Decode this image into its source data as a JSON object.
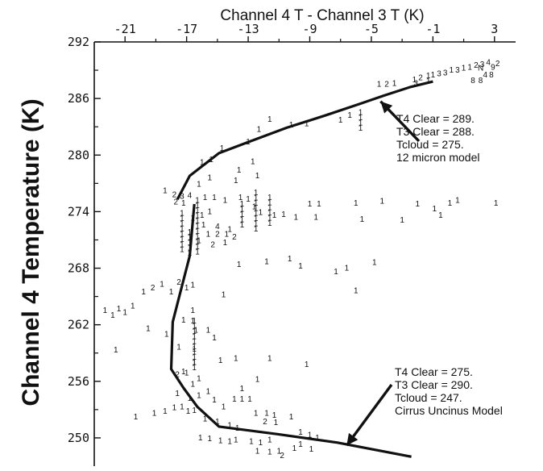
{
  "chart_data": {
    "type": "scatter",
    "title": "Channel 4 T - Channel 3 T (K)",
    "ylabel": "Channel 4 Temperature (K)",
    "xlabel": "",
    "x_axis_position": "top",
    "xlim": [
      -23,
      5
    ],
    "ylim": [
      247,
      292
    ],
    "x_ticks": [
      "-21",
      "-17",
      "-13",
      "-9",
      "-5",
      "-1",
      "3"
    ],
    "y_ticks": [
      "292",
      "286",
      "280",
      "274",
      "268",
      "262",
      "256",
      "250"
    ],
    "grid": false,
    "point_marker": "digit glyphs (counts per bin)",
    "scatter_points": [
      {
        "x": 3.2,
        "y": 289.7,
        "label": "2"
      },
      {
        "x": 2.6,
        "y": 289.8,
        "label": "4"
      },
      {
        "x": 2.2,
        "y": 289.6,
        "label": "3"
      },
      {
        "x": 2.9,
        "y": 289.3,
        "label": "9"
      },
      {
        "x": 1.8,
        "y": 289.5,
        "label": "2"
      },
      {
        "x": 1.4,
        "y": 289.3,
        "label": "1"
      },
      {
        "x": 2.1,
        "y": 289.2,
        "label": "N"
      },
      {
        "x": 1.0,
        "y": 289.2,
        "label": "1"
      },
      {
        "x": 0.6,
        "y": 289.0,
        "label": "3"
      },
      {
        "x": 0.2,
        "y": 289.0,
        "label": "1"
      },
      {
        "x": -0.2,
        "y": 288.7,
        "label": "3"
      },
      {
        "x": -0.6,
        "y": 288.6,
        "label": "3"
      },
      {
        "x": -1.0,
        "y": 288.5,
        "label": "1"
      },
      {
        "x": -1.8,
        "y": 288.2,
        "label": "2"
      },
      {
        "x": -2.2,
        "y": 288.0,
        "label": "1"
      },
      {
        "x": -2.1,
        "y": 287.6,
        "label": "3"
      },
      {
        "x": 1.6,
        "y": 287.9,
        "label": "8"
      },
      {
        "x": 2.1,
        "y": 287.9,
        "label": "8"
      },
      {
        "x": 2.4,
        "y": 288.5,
        "label": "4"
      },
      {
        "x": 2.8,
        "y": 288.5,
        "label": "8"
      },
      {
        "x": -4.5,
        "y": 287.5,
        "label": "1"
      },
      {
        "x": -4.0,
        "y": 287.5,
        "label": "2"
      },
      {
        "x": -3.5,
        "y": 287.6,
        "label": "1"
      },
      {
        "x": -7.0,
        "y": 283.7,
        "label": "1"
      },
      {
        "x": -6.4,
        "y": 284.2,
        "label": "1"
      },
      {
        "x": -9.2,
        "y": 283.3,
        "label": "1"
      },
      {
        "x": -10.2,
        "y": 283.2,
        "label": "1"
      },
      {
        "x": -11.6,
        "y": 283.8,
        "label": "1"
      },
      {
        "x": -12.3,
        "y": 282.7,
        "label": "1"
      },
      {
        "x": -13.0,
        "y": 281.4,
        "label": "1"
      },
      {
        "x": -14.7,
        "y": 280.7,
        "label": "1"
      },
      {
        "x": -15.4,
        "y": 279.5,
        "label": "1"
      },
      {
        "x": -16.0,
        "y": 279.2,
        "label": "1"
      },
      {
        "x": -13.6,
        "y": 278.4,
        "label": "1"
      },
      {
        "x": -12.7,
        "y": 279.3,
        "label": "1"
      },
      {
        "x": -15.5,
        "y": 277.6,
        "label": "1"
      },
      {
        "x": -16.2,
        "y": 276.9,
        "label": "1"
      },
      {
        "x": -13.8,
        "y": 277.3,
        "label": "1"
      },
      {
        "x": -12.4,
        "y": 277.8,
        "label": "1"
      },
      {
        "x": -18.4,
        "y": 276.2,
        "label": "1"
      },
      {
        "x": -17.8,
        "y": 275.8,
        "label": "2"
      },
      {
        "x": -17.3,
        "y": 275.6,
        "label": "3"
      },
      {
        "x": -16.8,
        "y": 275.7,
        "label": "4"
      },
      {
        "x": -17.7,
        "y": 275.0,
        "label": "2"
      },
      {
        "x": -17.2,
        "y": 274.9,
        "label": "1"
      },
      {
        "x": -15.8,
        "y": 275.5,
        "label": "1"
      },
      {
        "x": -15.2,
        "y": 275.5,
        "label": "1"
      },
      {
        "x": -14.5,
        "y": 275.2,
        "label": "1"
      },
      {
        "x": -13.5,
        "y": 275.5,
        "label": "1"
      },
      {
        "x": -13.0,
        "y": 275.3,
        "label": "1"
      },
      {
        "x": -12.6,
        "y": 274.5,
        "label": "1"
      },
      {
        "x": -12.2,
        "y": 273.9,
        "label": "1"
      },
      {
        "x": -11.3,
        "y": 273.6,
        "label": "1"
      },
      {
        "x": -10.7,
        "y": 273.7,
        "label": "1"
      },
      {
        "x": -9.9,
        "y": 273.4,
        "label": "1"
      },
      {
        "x": -9.0,
        "y": 274.8,
        "label": "1"
      },
      {
        "x": -8.4,
        "y": 274.8,
        "label": "1"
      },
      {
        "x": -8.6,
        "y": 273.4,
        "label": "1"
      },
      {
        "x": -16.0,
        "y": 273.6,
        "label": "1"
      },
      {
        "x": -15.5,
        "y": 274.0,
        "label": "1"
      },
      {
        "x": -15.9,
        "y": 272.6,
        "label": "1"
      },
      {
        "x": -15.0,
        "y": 272.4,
        "label": "4"
      },
      {
        "x": -14.2,
        "y": 272.1,
        "label": "1"
      },
      {
        "x": -15.6,
        "y": 271.6,
        "label": "1"
      },
      {
        "x": -15.0,
        "y": 271.6,
        "label": "2"
      },
      {
        "x": -14.4,
        "y": 271.6,
        "label": "1"
      },
      {
        "x": -13.9,
        "y": 271.3,
        "label": "2"
      },
      {
        "x": -16.2,
        "y": 270.9,
        "label": "1"
      },
      {
        "x": -15.3,
        "y": 270.5,
        "label": "2"
      },
      {
        "x": -14.5,
        "y": 270.7,
        "label": "1"
      },
      {
        "x": -16.6,
        "y": 273.3,
        "label": "1"
      },
      {
        "x": -6.0,
        "y": 274.9,
        "label": "1"
      },
      {
        "x": -4.3,
        "y": 275.1,
        "label": "1"
      },
      {
        "x": -3.0,
        "y": 273.1,
        "label": "1"
      },
      {
        "x": -5.6,
        "y": 273.2,
        "label": "1"
      },
      {
        "x": -2.0,
        "y": 274.8,
        "label": "1"
      },
      {
        "x": -0.9,
        "y": 274.3,
        "label": "1"
      },
      {
        "x": -0.5,
        "y": 273.6,
        "label": "1"
      },
      {
        "x": 0.1,
        "y": 274.9,
        "label": "1"
      },
      {
        "x": 0.6,
        "y": 275.2,
        "label": "1"
      },
      {
        "x": 3.1,
        "y": 274.9,
        "label": "1"
      },
      {
        "x": -11.8,
        "y": 268.7,
        "label": "1"
      },
      {
        "x": -10.3,
        "y": 269.0,
        "label": "1"
      },
      {
        "x": -9.6,
        "y": 268.2,
        "label": "1"
      },
      {
        "x": -7.3,
        "y": 267.6,
        "label": "1"
      },
      {
        "x": -6.6,
        "y": 268.0,
        "label": "1"
      },
      {
        "x": -4.8,
        "y": 268.6,
        "label": "1"
      },
      {
        "x": -6.0,
        "y": 265.6,
        "label": "1"
      },
      {
        "x": -13.6,
        "y": 268.4,
        "label": "1"
      },
      {
        "x": -14.6,
        "y": 265.2,
        "label": "1"
      },
      {
        "x": -20.5,
        "y": 264.0,
        "label": "1"
      },
      {
        "x": -19.8,
        "y": 265.5,
        "label": "1"
      },
      {
        "x": -19.2,
        "y": 265.9,
        "label": "2"
      },
      {
        "x": -18.6,
        "y": 266.3,
        "label": "1"
      },
      {
        "x": -18.0,
        "y": 265.5,
        "label": "1"
      },
      {
        "x": -17.5,
        "y": 266.5,
        "label": "2"
      },
      {
        "x": -17.0,
        "y": 265.9,
        "label": "1"
      },
      {
        "x": -16.6,
        "y": 266.2,
        "label": "1"
      },
      {
        "x": -22.3,
        "y": 263.5,
        "label": "1"
      },
      {
        "x": -21.8,
        "y": 263.0,
        "label": "1"
      },
      {
        "x": -21.4,
        "y": 263.7,
        "label": "1"
      },
      {
        "x": -21.0,
        "y": 263.3,
        "label": "1"
      },
      {
        "x": -21.6,
        "y": 259.3,
        "label": "1"
      },
      {
        "x": -19.5,
        "y": 261.6,
        "label": "1"
      },
      {
        "x": -18.3,
        "y": 261.0,
        "label": "1"
      },
      {
        "x": -15.6,
        "y": 261.4,
        "label": "1"
      },
      {
        "x": -15.2,
        "y": 260.6,
        "label": "1"
      },
      {
        "x": -17.5,
        "y": 259.6,
        "label": "1"
      },
      {
        "x": -17.2,
        "y": 257.0,
        "label": "1"
      },
      {
        "x": -14.8,
        "y": 258.2,
        "label": "1"
      },
      {
        "x": -13.8,
        "y": 258.4,
        "label": "1"
      },
      {
        "x": -11.6,
        "y": 258.4,
        "label": "1"
      },
      {
        "x": -9.2,
        "y": 257.8,
        "label": "1"
      },
      {
        "x": -12.4,
        "y": 256.2,
        "label": "1"
      },
      {
        "x": -13.4,
        "y": 255.2,
        "label": "1"
      },
      {
        "x": -17.6,
        "y": 256.7,
        "label": "2"
      },
      {
        "x": -17.0,
        "y": 256.9,
        "label": "1"
      },
      {
        "x": -16.6,
        "y": 255.7,
        "label": "1"
      },
      {
        "x": -16.2,
        "y": 256.3,
        "label": "1"
      },
      {
        "x": -17.6,
        "y": 254.7,
        "label": "1"
      },
      {
        "x": -16.8,
        "y": 254.2,
        "label": "1"
      },
      {
        "x": -16.2,
        "y": 254.5,
        "label": "1"
      },
      {
        "x": -15.6,
        "y": 254.9,
        "label": "1"
      },
      {
        "x": -15.2,
        "y": 254.0,
        "label": "1"
      },
      {
        "x": -14.6,
        "y": 253.3,
        "label": "1"
      },
      {
        "x": -13.9,
        "y": 254.1,
        "label": "1"
      },
      {
        "x": -13.4,
        "y": 254.1,
        "label": "1"
      },
      {
        "x": -12.9,
        "y": 254.1,
        "label": "1"
      },
      {
        "x": -20.3,
        "y": 252.2,
        "label": "1"
      },
      {
        "x": -19.1,
        "y": 252.6,
        "label": "1"
      },
      {
        "x": -18.4,
        "y": 252.8,
        "label": "1"
      },
      {
        "x": -17.8,
        "y": 253.2,
        "label": "1"
      },
      {
        "x": -17.3,
        "y": 253.3,
        "label": "1"
      },
      {
        "x": -16.9,
        "y": 252.8,
        "label": "1"
      },
      {
        "x": -16.5,
        "y": 252.9,
        "label": "1"
      },
      {
        "x": -15.8,
        "y": 252.0,
        "label": "1"
      },
      {
        "x": -15.0,
        "y": 251.7,
        "label": "1"
      },
      {
        "x": -14.2,
        "y": 251.3,
        "label": "1"
      },
      {
        "x": -13.7,
        "y": 251.0,
        "label": "1"
      },
      {
        "x": -12.5,
        "y": 252.6,
        "label": "1"
      },
      {
        "x": -11.8,
        "y": 252.6,
        "label": "1"
      },
      {
        "x": -11.3,
        "y": 252.4,
        "label": "1"
      },
      {
        "x": -11.9,
        "y": 251.7,
        "label": "2"
      },
      {
        "x": -11.2,
        "y": 251.6,
        "label": "1"
      },
      {
        "x": -10.2,
        "y": 252.2,
        "label": "1"
      },
      {
        "x": -9.6,
        "y": 250.6,
        "label": "1"
      },
      {
        "x": -9.0,
        "y": 250.3,
        "label": "1"
      },
      {
        "x": -8.5,
        "y": 250.0,
        "label": "1"
      },
      {
        "x": -16.1,
        "y": 250.0,
        "label": "1"
      },
      {
        "x": -15.5,
        "y": 249.9,
        "label": "1"
      },
      {
        "x": -14.8,
        "y": 249.7,
        "label": "1"
      },
      {
        "x": -14.2,
        "y": 249.6,
        "label": "1"
      },
      {
        "x": -13.8,
        "y": 249.8,
        "label": "1"
      },
      {
        "x": -12.8,
        "y": 249.6,
        "label": "1"
      },
      {
        "x": -12.2,
        "y": 249.5,
        "label": "1"
      },
      {
        "x": -11.6,
        "y": 249.8,
        "label": "1"
      },
      {
        "x": -12.4,
        "y": 248.6,
        "label": "1"
      },
      {
        "x": -11.6,
        "y": 248.5,
        "label": "1"
      },
      {
        "x": -11.0,
        "y": 248.6,
        "label": "1"
      },
      {
        "x": -10.8,
        "y": 248.1,
        "label": "2"
      },
      {
        "x": -10.0,
        "y": 248.9,
        "label": "1"
      },
      {
        "x": -9.6,
        "y": 249.3,
        "label": "1"
      },
      {
        "x": -8.9,
        "y": 248.8,
        "label": "1"
      },
      {
        "x": -17.2,
        "y": 262.5,
        "label": "1"
      },
      {
        "x": -16.6,
        "y": 263.5,
        "label": "1"
      },
      {
        "x": -16.6,
        "y": 262.4,
        "label": "1"
      },
      {
        "x": -16.5,
        "y": 259.4,
        "label": "1"
      },
      {
        "x": -16.5,
        "y": 258.0,
        "label": "1"
      },
      {
        "x": -16.4,
        "y": 261.4,
        "label": "1"
      }
    ],
    "stacked_marker_columns": [
      {
        "x": -16.3,
        "y_from": 275.2,
        "y_to": 269.5
      },
      {
        "x": -17.3,
        "y_from": 273.8,
        "y_to": 269.8
      },
      {
        "x": -16.5,
        "y_from": 262.4,
        "y_to": 257.2
      },
      {
        "x": -12.5,
        "y_from": 276.0,
        "y_to": 271.8
      },
      {
        "x": -11.6,
        "y_from": 275.5,
        "y_to": 272.6
      },
      {
        "x": -13.4,
        "y_from": 274.8,
        "y_to": 272.5
      },
      {
        "x": -16.8,
        "y_from": 271.8,
        "y_to": 269.2
      },
      {
        "x": -5.7,
        "y_from": 284.5,
        "y_to": 282.8
      },
      {
        "x": -1.3,
        "y_from": 288.4,
        "y_to": 287.4
      }
    ],
    "series": [
      {
        "name": "12 micron model",
        "type": "line",
        "x": [
          -17.6,
          -16.8,
          -14.9,
          -12.8,
          -10.5,
          -8.0,
          -5.8,
          -4.2,
          -2.5,
          -1.0
        ],
        "y": [
          275.3,
          277.8,
          280.2,
          281.5,
          282.9,
          284.2,
          285.4,
          286.3,
          287.2,
          287.8
        ]
      },
      {
        "name": "Cirrus Uncinus Model",
        "type": "line",
        "x": [
          -16.5,
          -16.8,
          -17.4,
          -17.9,
          -18.0,
          -17.2,
          -16.3,
          -14.9,
          -11.1,
          -7.2,
          -2.4
        ],
        "y": [
          274.8,
          269.3,
          265.5,
          262.3,
          257.3,
          255.3,
          253.3,
          251.2,
          250.4,
          249.5,
          248.0
        ]
      }
    ],
    "annotations": [
      {
        "lines": [
          "T4 Clear = 289.",
          "T3 Clear = 288.",
          "Tcloud   = 275.",
          "12 micron model"
        ],
        "arrow_to": {
          "x": -4.4,
          "y": 285.7
        }
      },
      {
        "lines": [
          "T4 Clear = 275.",
          "T3 Clear = 290.",
          "Tcloud   = 247.",
          "Cirrus Uncinus Model"
        ],
        "arrow_to": {
          "x": -6.6,
          "y": 249.2
        }
      }
    ]
  }
}
